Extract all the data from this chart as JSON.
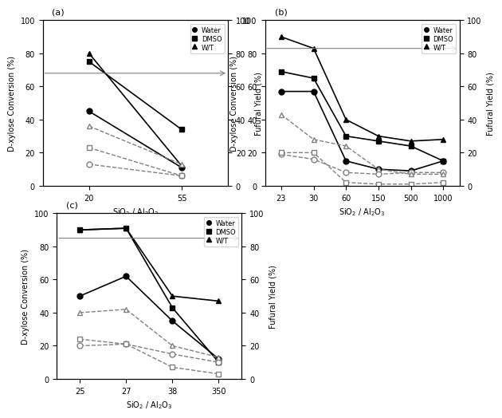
{
  "panel_a": {
    "title": "(a)",
    "x_ticks": [
      20,
      55
    ],
    "x_labels": [
      "20",
      "55"
    ],
    "xlabel": "SiO$_2$ / Al$_2$O$_3$",
    "conversion": {
      "Water": [
        45,
        11
      ],
      "DMSO": [
        75,
        34
      ],
      "W/T": [
        80,
        12
      ]
    },
    "yield": {
      "Water": [
        13,
        6
      ],
      "DMSO": [
        23,
        6
      ],
      "W/T": [
        36,
        13
      ]
    },
    "arrow_conversion": [
      68,
      16
    ],
    "arrow_yield": [
      68,
      16
    ]
  },
  "panel_b": {
    "title": "(b)",
    "x_ticks": [
      23,
      30,
      60,
      150,
      500,
      1000
    ],
    "x_labels": [
      "23",
      "30",
      "60",
      "150",
      "500",
      "1000"
    ],
    "xlabel": "SiO$_2$ / Al$_2$O$_3$",
    "conversion": {
      "Water": [
        57,
        57,
        15,
        10,
        9,
        15
      ],
      "DMSO": [
        69,
        65,
        30,
        27,
        24,
        15
      ],
      "W/T": [
        90,
        83,
        40,
        30,
        27,
        28
      ]
    },
    "yield": {
      "Water": [
        19,
        16,
        8,
        7,
        8,
        8
      ],
      "DMSO": [
        20,
        20,
        2,
        1,
        1,
        2
      ],
      "W/T": [
        43,
        28,
        24,
        10,
        7,
        7
      ]
    },
    "arrow_conversion": [
      83,
      3
    ],
    "arrow_yield": [
      83,
      3
    ]
  },
  "panel_c": {
    "title": "(c)",
    "x_ticks": [
      25,
      27,
      38,
      350
    ],
    "x_labels": [
      "25",
      "27",
      "38",
      "350"
    ],
    "xlabel": "SiO$_2$ / Al$_2$O$_3$",
    "conversion": {
      "Water": [
        50,
        62,
        35,
        12
      ],
      "DMSO": [
        90,
        91,
        43,
        10
      ],
      "W/T": [
        90,
        91,
        50,
        47
      ]
    },
    "yield": {
      "Water": [
        20,
        21,
        15,
        10
      ],
      "DMSO": [
        24,
        21,
        7,
        3
      ],
      "W/T": [
        40,
        42,
        20,
        13
      ]
    },
    "arrow_conversion": [
      85,
      3
    ],
    "arrow_yield": [
      85,
      3
    ]
  },
  "markers": {
    "Water": "o",
    "DMSO": "s",
    "W/T": "^"
  },
  "colors": {
    "Water": "black",
    "DMSO": "black",
    "W/T": "black"
  }
}
